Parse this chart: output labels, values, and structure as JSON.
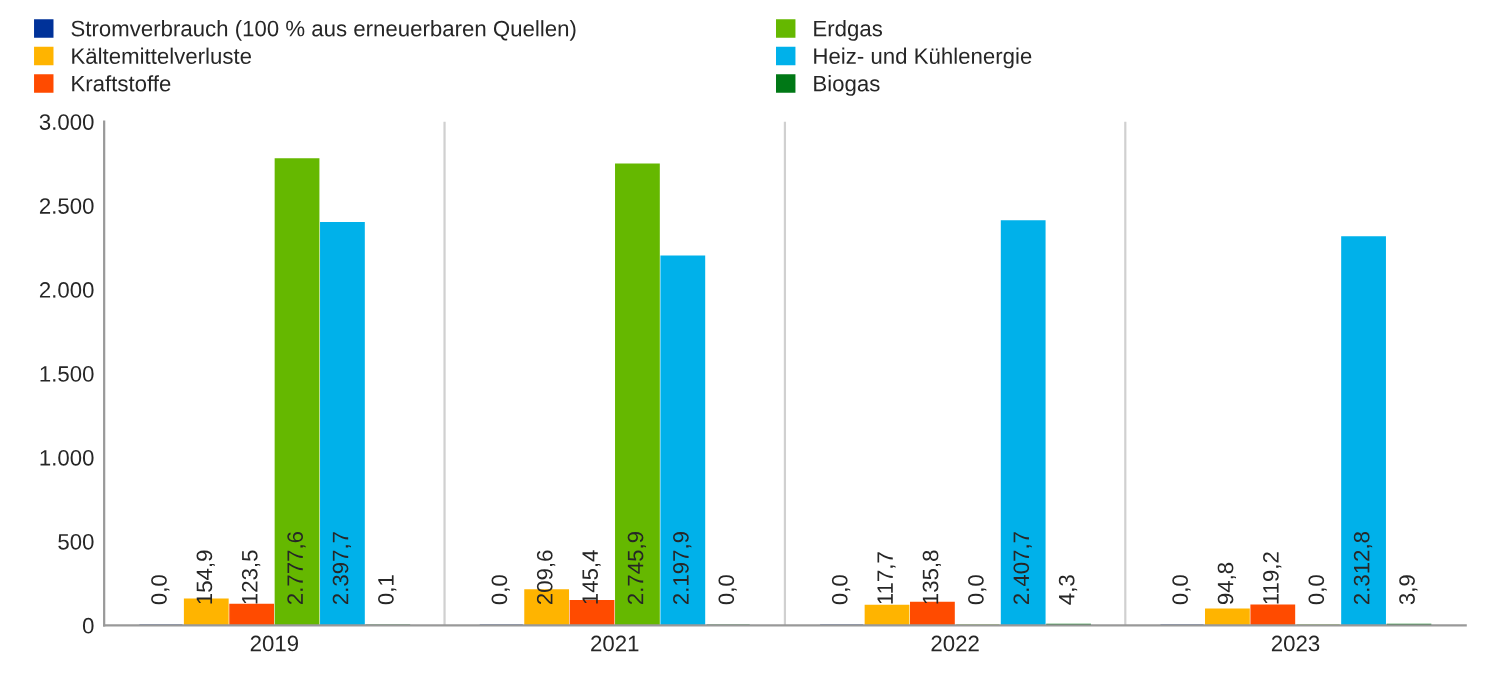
{
  "chart_data": {
    "type": "bar",
    "categories": [
      "2019",
      "2021",
      "2022",
      "2023"
    ],
    "series": [
      {
        "name": "Stromverbrauch (100 % aus erneuerbaren Quellen)",
        "color": "#003299",
        "values": [
          0.0,
          0.0,
          0.0,
          0.0
        ],
        "value_labels": [
          "0,0",
          "0,0",
          "0,0",
          "0,0"
        ]
      },
      {
        "name": "Kältemittelverluste",
        "color": "#ffb400",
        "values": [
          154.9,
          209.6,
          117.7,
          94.8
        ],
        "value_labels": [
          "154,9",
          "209,6",
          "117,7",
          "94,8"
        ]
      },
      {
        "name": "Kraftstoffe",
        "color": "#ff4b00",
        "values": [
          123.5,
          145.4,
          135.8,
          119.2
        ],
        "value_labels": [
          "123,5",
          "145,4",
          "135,8",
          "119,2"
        ]
      },
      {
        "name": "Erdgas",
        "color": "#65b800",
        "values": [
          2777.6,
          2745.9,
          0.0,
          0.0
        ],
        "value_labels": [
          "2.777,6",
          "2.745,9",
          "0,0",
          "0,0"
        ]
      },
      {
        "name": "Heiz- und Kühlenergie",
        "color": "#00b1ea",
        "values": [
          2397.7,
          2197.9,
          2407.7,
          2312.8
        ],
        "value_labels": [
          "2.397,7",
          "2.197,9",
          "2.407,7",
          "2.312,8"
        ]
      },
      {
        "name": "Biogas",
        "color": "#007816",
        "values": [
          0.1,
          0.0,
          4.3,
          3.9
        ],
        "value_labels": [
          "0,1",
          "0,0",
          "4,3",
          "3,9"
        ]
      }
    ],
    "ylim": [
      0,
      3000
    ],
    "yticks": [
      {
        "value": 0,
        "label": "0"
      },
      {
        "value": 500,
        "label": "500"
      },
      {
        "value": 1000,
        "label": "1.000"
      },
      {
        "value": 1500,
        "label": "1.500"
      },
      {
        "value": 2000,
        "label": "2.000"
      },
      {
        "value": 2500,
        "label": "2.500"
      },
      {
        "value": 3000,
        "label": "3.000"
      }
    ],
    "grid": "x",
    "legend": "top"
  }
}
